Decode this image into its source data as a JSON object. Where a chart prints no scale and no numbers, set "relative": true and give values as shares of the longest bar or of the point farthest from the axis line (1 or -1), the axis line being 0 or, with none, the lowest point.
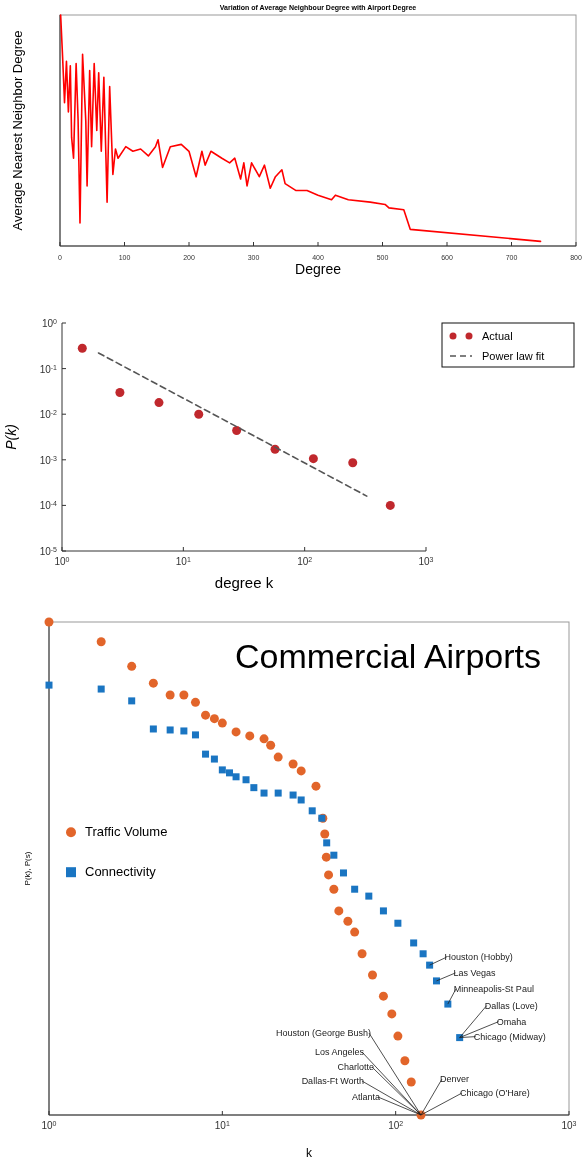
{
  "chart_data": [
    {
      "type": "line",
      "title": "Variation of Average Neighbour Degree with Airport Degree",
      "xlabel": "Degree",
      "ylabel": "Average Nearest Neighbor Degree",
      "relative": true,
      "tick_labels": "x",
      "xlim": [
        0,
        800
      ],
      "xticks": [
        0,
        100,
        200,
        300,
        400,
        500,
        600,
        700,
        800
      ],
      "x": [
        1,
        4,
        7,
        10,
        13,
        16,
        18,
        21,
        25,
        28,
        31,
        35,
        40,
        42,
        46,
        49,
        53,
        57,
        60,
        64,
        68,
        73,
        77,
        82,
        86,
        90,
        102,
        113,
        125,
        137,
        148,
        152,
        159,
        171,
        188,
        200,
        211,
        220,
        225,
        234,
        251,
        263,
        271,
        280,
        285,
        290,
        297,
        309,
        317,
        326,
        334,
        344,
        349,
        366,
        383,
        400,
        421,
        427,
        447,
        481,
        504,
        510,
        533,
        543,
        745
      ],
      "series": [
        {
          "color": "#ff0000",
          "values": [
            1.0,
            0.82,
            0.62,
            0.8,
            0.58,
            0.78,
            0.47,
            0.38,
            0.79,
            0.55,
            0.1,
            0.83,
            0.54,
            0.26,
            0.76,
            0.43,
            0.79,
            0.5,
            0.75,
            0.41,
            0.73,
            0.19,
            0.69,
            0.31,
            0.42,
            0.38,
            0.43,
            0.41,
            0.42,
            0.39,
            0.43,
            0.46,
            0.34,
            0.43,
            0.44,
            0.41,
            0.3,
            0.41,
            0.35,
            0.41,
            0.38,
            0.36,
            0.38,
            0.29,
            0.36,
            0.26,
            0.36,
            0.3,
            0.35,
            0.25,
            0.3,
            0.33,
            0.27,
            0.24,
            0.24,
            0.22,
            0.2,
            0.22,
            0.2,
            0.19,
            0.18,
            0.165,
            0.157,
            0.072,
            0.02
          ]
        }
      ]
    },
    {
      "type": "scatter",
      "xlabel": "degree k",
      "ylabel": "P(k)",
      "log": "xy",
      "legend": "top right",
      "xlim": [
        1,
        1000
      ],
      "ylim": [
        1e-05,
        1
      ],
      "xticks": [
        {
          "value": 1,
          "label": "10$^{0}$"
        },
        {
          "value": 10,
          "label": "10$^{1}$"
        },
        {
          "value": 100,
          "label": "10$^{2}$"
        },
        {
          "value": 1000,
          "label": "10$^{3}$"
        }
      ],
      "yticks": [
        {
          "value": 1e-05,
          "label": "10$^{-5}$"
        },
        {
          "value": 0.0001,
          "label": "10$^{-4}$"
        },
        {
          "value": 0.001,
          "label": "10$^{-3}$"
        },
        {
          "value": 0.01,
          "label": "10$^{-2}$"
        },
        {
          "value": 0.1,
          "label": "10$^{-1}$"
        },
        {
          "value": 1,
          "label": "10$^{0}$"
        }
      ],
      "series": [
        {
          "name": "Actual",
          "marker": "circle",
          "color": "#c0282d",
          "x": [
            1.47,
            3.0,
            6.3,
            13.4,
            27.5,
            57,
            118,
            249,
            508
          ],
          "values": [
            0.28,
            0.03,
            0.018,
            0.01,
            0.0044,
            0.0017,
            0.00106,
            0.00086,
            0.0001
          ]
        },
        {
          "name": "Power law fit",
          "type": "line",
          "line_style": "dashed",
          "color": "#555555",
          "x": [
            2.0,
            325
          ],
          "values": [
            0.22,
            0.00016
          ]
        }
      ]
    },
    {
      "type": "scatter",
      "title": "Commercial Airports",
      "xlabel": "k",
      "ylabel": "P(k), P(s)",
      "log": "x",
      "relative": true,
      "tick_labels": "x",
      "legend": "left",
      "xlim": [
        1,
        1000
      ],
      "xticks": [
        {
          "value": 1,
          "label": "10$^{0}$"
        },
        {
          "value": 10,
          "label": "10$^{1}$"
        },
        {
          "value": 100,
          "label": "10$^{2}$"
        },
        {
          "value": 1000,
          "label": "10$^{3}$"
        }
      ],
      "series": [
        {
          "name": "Traffic Volume",
          "color": "#e2652a",
          "marker": "circle",
          "x": [
            1,
            2,
            3,
            4,
            5,
            6,
            7,
            8,
            9,
            10,
            12,
            14.4,
            17.4,
            19,
            21,
            25.6,
            28.5,
            34.7,
            38,
            39,
            39.8,
            41,
            44,
            47,
            53,
            58,
            64,
            73.5,
            85,
            95,
            103,
            113,
            123,
            140
          ],
          "values": [
            1.0,
            0.96,
            0.91,
            0.876,
            0.852,
            0.852,
            0.837,
            0.811,
            0.804,
            0.795,
            0.777,
            0.769,
            0.763,
            0.75,
            0.726,
            0.712,
            0.698,
            0.667,
            0.602,
            0.57,
            0.523,
            0.487,
            0.458,
            0.414,
            0.393,
            0.371,
            0.327,
            0.284,
            0.241,
            0.205,
            0.16,
            0.11,
            0.067,
            0
          ]
        },
        {
          "name": "Connectivity",
          "color": "#1a75c2",
          "marker": "square",
          "x": [
            1,
            2,
            3,
            4,
            5,
            6,
            7,
            8,
            9,
            10,
            11,
            12,
            13.7,
            15.2,
            17.4,
            21,
            25.6,
            28.5,
            33,
            37.5,
            40,
            44,
            50,
            58,
            70,
            85,
            103,
            127,
            144,
            157,
            172,
            200,
            234
          ],
          "values": [
            0.872,
            0.864,
            0.84,
            0.783,
            0.781,
            0.779,
            0.771,
            0.732,
            0.722,
            0.7,
            0.694,
            0.686,
            0.68,
            0.664,
            0.653,
            0.653,
            0.649,
            0.639,
            0.617,
            0.602,
            0.552,
            0.527,
            0.491,
            0.458,
            0.444,
            0.414,
            0.389,
            0.349,
            0.327,
            0.304,
            0.272,
            0.225,
            0.157
          ]
        }
      ],
      "annotations": [
        {
          "text": "Houston (George Bush)",
          "x": 140,
          "y": 0
        },
        {
          "text": "Los Angeles",
          "x": 140,
          "y": 0
        },
        {
          "text": "Charlotte",
          "x": 140,
          "y": 0
        },
        {
          "text": "Dallas-Ft Worth",
          "x": 140,
          "y": 0
        },
        {
          "text": "Atlanta",
          "x": 140,
          "y": 0
        },
        {
          "text": "Denver",
          "x": 140,
          "y": 0
        },
        {
          "text": "Chicago (O'Hare)",
          "x": 140,
          "y": 0
        },
        {
          "text": "Houston (Hobby)",
          "x": 157,
          "y": 0.304
        },
        {
          "text": "Las Vegas",
          "x": 172,
          "y": 0.272
        },
        {
          "text": "Minneapolis-St Paul",
          "x": 200,
          "y": 0.225
        },
        {
          "text": "Dallas (Love)",
          "x": 234,
          "y": 0.157
        },
        {
          "text": "Omaha",
          "x": 234,
          "y": 0.157
        },
        {
          "text": "Chicago (Midway)",
          "x": 234,
          "y": 0.157
        }
      ]
    }
  ]
}
